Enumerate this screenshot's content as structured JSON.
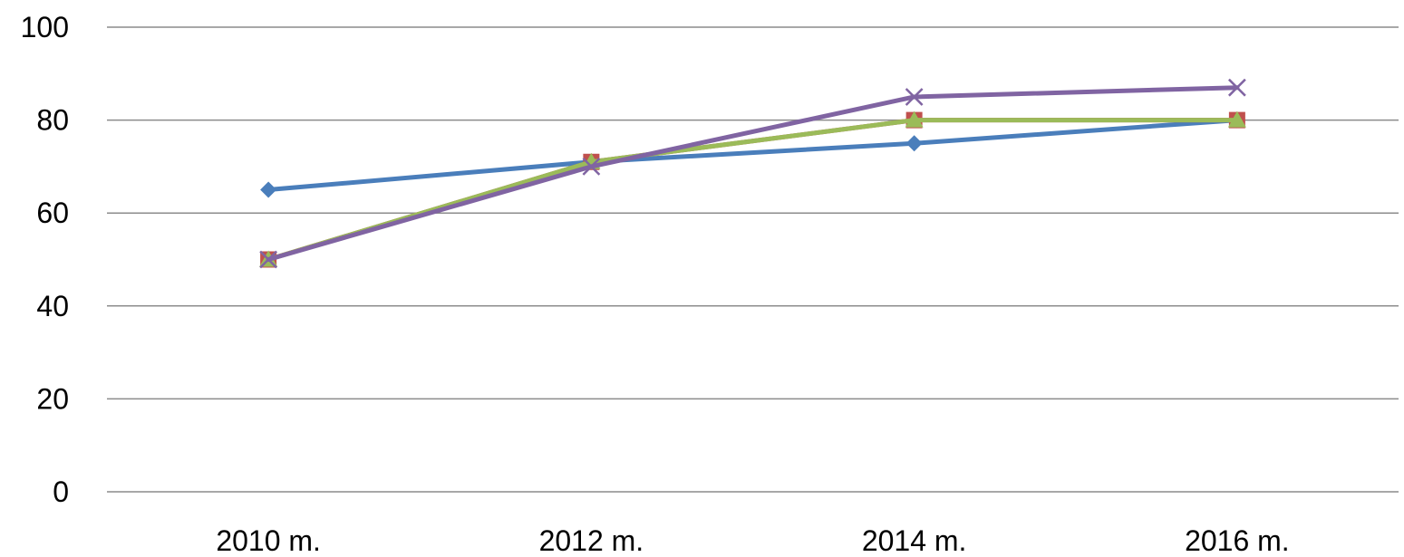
{
  "chart_data": {
    "type": "line",
    "title": "",
    "xlabel": "",
    "ylabel": "",
    "categories": [
      "2010 m.",
      "2012 m.",
      "2014 m.",
      "2016 m."
    ],
    "yticks": [
      "0",
      "20",
      "40",
      "60",
      "80",
      "100"
    ],
    "ylim": [
      0,
      100
    ],
    "grid": true,
    "legend": "none",
    "series": [
      {
        "color": "#4a7ebb",
        "marker": "diamond",
        "values": [
          65,
          71,
          75,
          80
        ]
      },
      {
        "color": "#c0504d",
        "marker": "square",
        "values": [
          50,
          71,
          80,
          80
        ]
      },
      {
        "color": "#9bbb59",
        "marker": "triangle",
        "values": [
          50,
          71,
          80,
          80
        ]
      },
      {
        "color": "#8064a2",
        "marker": "x",
        "values": [
          50,
          70,
          85,
          87
        ]
      }
    ]
  }
}
